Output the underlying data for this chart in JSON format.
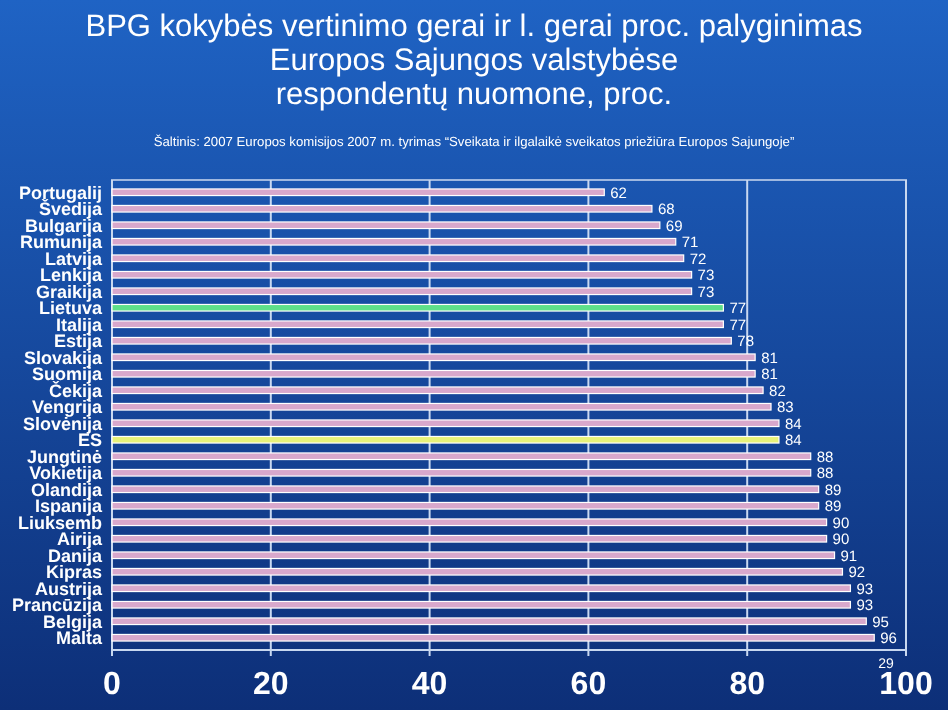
{
  "chart_data": {
    "type": "bar",
    "orientation": "horizontal",
    "title": "BPG kokybės vertinimo gerai ir l. gerai proc. palyginimas\nEuropos Sajungos valstybėse\nrespondentų nuomone, proc.",
    "annotations": [
      "Šaltinis: 2007 Europos komisijos 2007 m. tyrimas “Sveikata ir ilgalaikė sveikatos priežiūra Europos Sajungoje”",
      "29"
    ],
    "categories": [
      "Portugalij",
      "Švedija",
      "Bulgarija",
      "Rumunija",
      "Latvija",
      "Lenkija",
      "Graikija",
      "Lietuva",
      "Italija",
      "Estija",
      "Slovakija",
      "Suomija",
      "Čekija",
      "Vengrija",
      "Slovėnija",
      "ES",
      "Jungtinė",
      "Vokietija",
      "Olandija",
      "Ispanija",
      "Liuksemb",
      "Airija",
      "Danija",
      "Kipras",
      "Austrija",
      "Prancūzija",
      "Belgija",
      "Malta"
    ],
    "values": [
      62,
      68,
      69,
      71,
      72,
      73,
      73,
      77,
      77,
      78,
      81,
      81,
      82,
      83,
      84,
      84,
      88,
      88,
      89,
      89,
      90,
      90,
      91,
      92,
      93,
      93,
      95,
      96
    ],
    "colors": [
      "#d8a8cc",
      "#d8a8cc",
      "#d8a8cc",
      "#d8a8cc",
      "#d8a8cc",
      "#d8a8cc",
      "#d8a8cc",
      "#5ee08a",
      "#d8a8cc",
      "#d8a8cc",
      "#d8a8cc",
      "#d8a8cc",
      "#d8a8cc",
      "#d8a8cc",
      "#d8a8cc",
      "#e8f27a",
      "#d8a8cc",
      "#d8a8cc",
      "#d8a8cc",
      "#d8a8cc",
      "#d8a8cc",
      "#d8a8cc",
      "#d8a8cc",
      "#d8a8cc",
      "#d8a8cc",
      "#d8a8cc",
      "#d8a8cc",
      "#d8a8cc"
    ],
    "xlim": [
      0,
      100
    ],
    "xticks": [
      0,
      20,
      40,
      60,
      80,
      100
    ],
    "grid": "x",
    "data_labels": true
  }
}
